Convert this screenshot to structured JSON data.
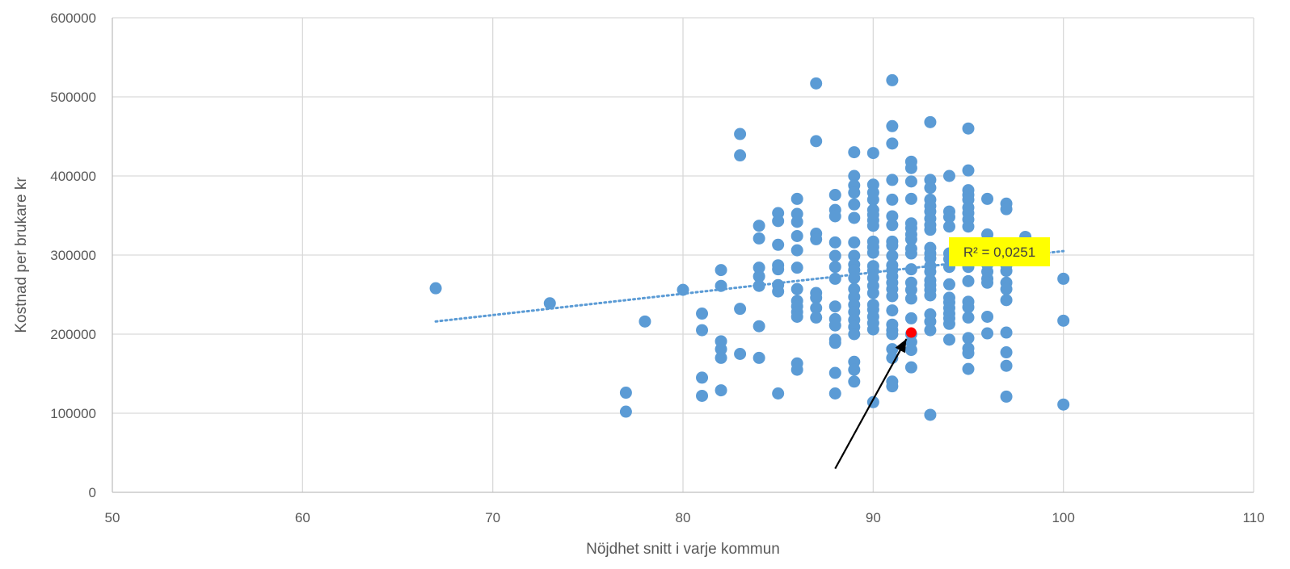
{
  "chart_data": {
    "type": "scatter",
    "title": "",
    "xlabel": "Nöjdhet snitt i varje kommun",
    "ylabel": "Kostnad per brukare kr",
    "xlim": [
      50,
      110
    ],
    "ylim": [
      0,
      600000
    ],
    "x_ticks": [
      50,
      60,
      70,
      80,
      90,
      100,
      110
    ],
    "y_ticks": [
      0,
      100000,
      200000,
      300000,
      400000,
      500000,
      600000
    ],
    "x_tick_labels": [
      "50",
      "60",
      "70",
      "80",
      "90",
      "100",
      "110"
    ],
    "y_tick_labels": [
      "0",
      "100000",
      "200000",
      "300000",
      "400000",
      "500000",
      "600000"
    ],
    "grid": true,
    "legend": "none",
    "colors": {
      "points": "#5B9BD5",
      "highlight": "#FF0000",
      "trendline": "#5B9BD5",
      "r2_box": "#FFFF00",
      "arrow": "#000000",
      "grid": "#D9D9D9"
    },
    "series": [
      {
        "marker": "circle",
        "points": [
          [
            67,
            258000
          ],
          [
            73,
            239000
          ],
          [
            77,
            126000
          ],
          [
            77,
            102000
          ],
          [
            78,
            216000
          ],
          [
            80,
            256000
          ],
          [
            81,
            226000
          ],
          [
            81,
            205000
          ],
          [
            81,
            145000
          ],
          [
            81,
            122000
          ],
          [
            82,
            281000
          ],
          [
            82,
            261000
          ],
          [
            82,
            191000
          ],
          [
            82,
            181000
          ],
          [
            82,
            170000
          ],
          [
            82,
            129000
          ],
          [
            83,
            453000
          ],
          [
            83,
            426000
          ],
          [
            83,
            232000
          ],
          [
            83,
            175000
          ],
          [
            84,
            337000
          ],
          [
            84,
            321000
          ],
          [
            84,
            284000
          ],
          [
            84,
            273000
          ],
          [
            84,
            261000
          ],
          [
            84,
            210000
          ],
          [
            84,
            170000
          ],
          [
            85,
            353000
          ],
          [
            85,
            343000
          ],
          [
            85,
            313000
          ],
          [
            85,
            287000
          ],
          [
            85,
            282000
          ],
          [
            85,
            262000
          ],
          [
            85,
            254000
          ],
          [
            85,
            125000
          ],
          [
            86,
            371000
          ],
          [
            86,
            352000
          ],
          [
            86,
            342000
          ],
          [
            86,
            324000
          ],
          [
            86,
            306000
          ],
          [
            86,
            284000
          ],
          [
            86,
            257000
          ],
          [
            86,
            242000
          ],
          [
            86,
            235000
          ],
          [
            86,
            228000
          ],
          [
            86,
            222000
          ],
          [
            86,
            163000
          ],
          [
            86,
            155000
          ],
          [
            87,
            517000
          ],
          [
            87,
            444000
          ],
          [
            87,
            327000
          ],
          [
            87,
            320000
          ],
          [
            87,
            252000
          ],
          [
            87,
            246000
          ],
          [
            87,
            233000
          ],
          [
            87,
            221000
          ],
          [
            88,
            376000
          ],
          [
            88,
            357000
          ],
          [
            88,
            349000
          ],
          [
            88,
            316000
          ],
          [
            88,
            299000
          ],
          [
            88,
            285000
          ],
          [
            88,
            270000
          ],
          [
            88,
            235000
          ],
          [
            88,
            219000
          ],
          [
            88,
            211000
          ],
          [
            88,
            193000
          ],
          [
            88,
            189000
          ],
          [
            88,
            151000
          ],
          [
            88,
            125000
          ],
          [
            89,
            430000
          ],
          [
            89,
            400000
          ],
          [
            89,
            388000
          ],
          [
            89,
            379000
          ],
          [
            89,
            364000
          ],
          [
            89,
            347000
          ],
          [
            89,
            316000
          ],
          [
            89,
            299000
          ],
          [
            89,
            288000
          ],
          [
            89,
            281000
          ],
          [
            89,
            271000
          ],
          [
            89,
            257000
          ],
          [
            89,
            247000
          ],
          [
            89,
            237000
          ],
          [
            89,
            228000
          ],
          [
            89,
            218000
          ],
          [
            89,
            209000
          ],
          [
            89,
            200000
          ],
          [
            89,
            165000
          ],
          [
            89,
            155000
          ],
          [
            89,
            140000
          ],
          [
            90,
            429000
          ],
          [
            90,
            389000
          ],
          [
            90,
            379000
          ],
          [
            90,
            370000
          ],
          [
            90,
            357000
          ],
          [
            90,
            351000
          ],
          [
            90,
            344000
          ],
          [
            90,
            337000
          ],
          [
            90,
            317000
          ],
          [
            90,
            310000
          ],
          [
            90,
            303000
          ],
          [
            90,
            286000
          ],
          [
            90,
            280000
          ],
          [
            90,
            271000
          ],
          [
            90,
            261000
          ],
          [
            90,
            252000
          ],
          [
            90,
            237000
          ],
          [
            90,
            231000
          ],
          [
            90,
            222000
          ],
          [
            90,
            214000
          ],
          [
            90,
            206000
          ],
          [
            90,
            114000
          ],
          [
            91,
            521000
          ],
          [
            91,
            463000
          ],
          [
            91,
            441000
          ],
          [
            91,
            395000
          ],
          [
            91,
            370000
          ],
          [
            91,
            349000
          ],
          [
            91,
            338000
          ],
          [
            91,
            317000
          ],
          [
            91,
            312000
          ],
          [
            91,
            299000
          ],
          [
            91,
            287000
          ],
          [
            91,
            281000
          ],
          [
            91,
            273000
          ],
          [
            91,
            265000
          ],
          [
            91,
            257000
          ],
          [
            91,
            248000
          ],
          [
            91,
            230000
          ],
          [
            91,
            212000
          ],
          [
            91,
            205000
          ],
          [
            91,
            200000
          ],
          [
            91,
            181000
          ],
          [
            91,
            170000
          ],
          [
            91,
            140000
          ],
          [
            91,
            134000
          ],
          [
            92,
            418000
          ],
          [
            92,
            410000
          ],
          [
            92,
            393000
          ],
          [
            92,
            371000
          ],
          [
            92,
            340000
          ],
          [
            92,
            334000
          ],
          [
            92,
            326000
          ],
          [
            92,
            320000
          ],
          [
            92,
            308000
          ],
          [
            92,
            302000
          ],
          [
            92,
            282000
          ],
          [
            92,
            265000
          ],
          [
            92,
            256000
          ],
          [
            92,
            245000
          ],
          [
            92,
            220000
          ],
          [
            92,
            200000
          ],
          [
            92,
            190000
          ],
          [
            92,
            180000
          ],
          [
            92,
            158000
          ],
          [
            93,
            468000
          ],
          [
            93,
            395000
          ],
          [
            93,
            385000
          ],
          [
            93,
            370000
          ],
          [
            93,
            362000
          ],
          [
            93,
            355000
          ],
          [
            93,
            346000
          ],
          [
            93,
            338000
          ],
          [
            93,
            332000
          ],
          [
            93,
            309000
          ],
          [
            93,
            302000
          ],
          [
            93,
            296000
          ],
          [
            93,
            286000
          ],
          [
            93,
            279000
          ],
          [
            93,
            268000
          ],
          [
            93,
            262000
          ],
          [
            93,
            256000
          ],
          [
            93,
            249000
          ],
          [
            93,
            225000
          ],
          [
            93,
            216000
          ],
          [
            93,
            205000
          ],
          [
            93,
            98000
          ],
          [
            94,
            400000
          ],
          [
            94,
            355000
          ],
          [
            94,
            348000
          ],
          [
            94,
            336000
          ],
          [
            94,
            302000
          ],
          [
            94,
            295000
          ],
          [
            94,
            285000
          ],
          [
            94,
            263000
          ],
          [
            94,
            246000
          ],
          [
            94,
            240000
          ],
          [
            94,
            233000
          ],
          [
            94,
            226000
          ],
          [
            94,
            220000
          ],
          [
            94,
            213000
          ],
          [
            94,
            193000
          ],
          [
            95,
            460000
          ],
          [
            95,
            407000
          ],
          [
            95,
            382000
          ],
          [
            95,
            376000
          ],
          [
            95,
            370000
          ],
          [
            95,
            360000
          ],
          [
            95,
            353000
          ],
          [
            95,
            345000
          ],
          [
            95,
            336000
          ],
          [
            95,
            312000
          ],
          [
            95,
            292000
          ],
          [
            95,
            285000
          ],
          [
            95,
            267000
          ],
          [
            95,
            241000
          ],
          [
            95,
            234000
          ],
          [
            95,
            221000
          ],
          [
            95,
            195000
          ],
          [
            95,
            182000
          ],
          [
            95,
            176000
          ],
          [
            95,
            156000
          ],
          [
            96,
            371000
          ],
          [
            96,
            326000
          ],
          [
            96,
            316000
          ],
          [
            96,
            298000
          ],
          [
            96,
            288000
          ],
          [
            96,
            279000
          ],
          [
            96,
            270000
          ],
          [
            96,
            265000
          ],
          [
            96,
            222000
          ],
          [
            96,
            201000
          ],
          [
            97,
            365000
          ],
          [
            97,
            358000
          ],
          [
            97,
            297000
          ],
          [
            97,
            287000
          ],
          [
            97,
            280000
          ],
          [
            97,
            265000
          ],
          [
            97,
            257000
          ],
          [
            97,
            243000
          ],
          [
            97,
            202000
          ],
          [
            97,
            177000
          ],
          [
            97,
            160000
          ],
          [
            97,
            121000
          ],
          [
            98,
            323000
          ],
          [
            100,
            270000
          ],
          [
            100,
            217000
          ],
          [
            100,
            111000
          ]
        ]
      }
    ],
    "highlight_point": [
      92,
      202000
    ],
    "trendline": {
      "type": "linear",
      "style": "dotted",
      "x_range": [
        67,
        100
      ],
      "y_range": [
        216000,
        305000
      ],
      "r_squared_label": "R² = 0,0251"
    },
    "annotation": {
      "type": "arrow",
      "from": [
        88,
        30000
      ],
      "to": [
        92,
        202000
      ]
    }
  }
}
